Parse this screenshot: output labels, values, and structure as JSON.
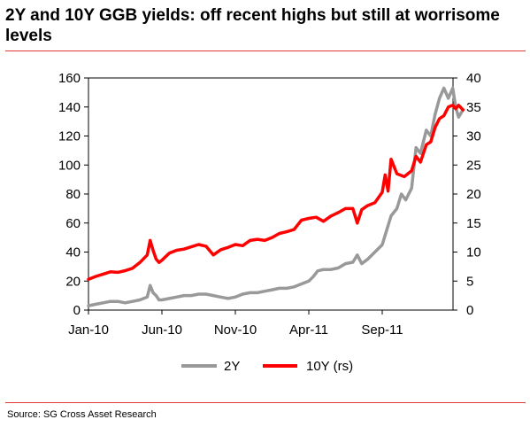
{
  "title": "2Y and 10Y GGB yields: off recent highs but still at worrisome levels",
  "source": "Source: SG Cross Asset Research",
  "chart_data": {
    "type": "line",
    "x_tick_labels": [
      "Jan-10",
      "Jun-10",
      "Nov-10",
      "Apr-11",
      "Sep-11"
    ],
    "y_left": {
      "ticks": [
        0,
        20,
        40,
        60,
        80,
        100,
        120,
        140,
        160
      ],
      "range": [
        0,
        160
      ]
    },
    "y_right": {
      "ticks": [
        0,
        5,
        10,
        15,
        20,
        25,
        30,
        35,
        40
      ],
      "range": [
        0,
        40
      ]
    },
    "x_range": [
      0,
      24
    ],
    "x_ticks": [
      0,
      5,
      10,
      15,
      20
    ],
    "grid": false,
    "legend_position": "bottom",
    "series": [
      {
        "name": "2Y",
        "axis": "left",
        "color": "#999999",
        "points": [
          [
            0,
            3
          ],
          [
            0.5,
            4
          ],
          [
            1,
            5
          ],
          [
            1.5,
            6
          ],
          [
            2,
            6
          ],
          [
            2.5,
            5
          ],
          [
            3,
            6
          ],
          [
            3.5,
            7
          ],
          [
            4,
            9
          ],
          [
            4.2,
            17
          ],
          [
            4.4,
            12
          ],
          [
            4.6,
            10
          ],
          [
            4.8,
            7
          ],
          [
            5,
            7
          ],
          [
            5.5,
            8
          ],
          [
            6,
            9
          ],
          [
            6.5,
            10
          ],
          [
            7,
            10
          ],
          [
            7.5,
            11
          ],
          [
            8,
            11
          ],
          [
            8.5,
            10
          ],
          [
            9,
            9
          ],
          [
            9.5,
            8
          ],
          [
            10,
            9
          ],
          [
            10.5,
            11
          ],
          [
            11,
            12
          ],
          [
            11.5,
            12
          ],
          [
            12,
            13
          ],
          [
            12.5,
            14
          ],
          [
            13,
            15
          ],
          [
            13.5,
            15
          ],
          [
            14,
            16
          ],
          [
            14.5,
            18
          ],
          [
            15,
            20
          ],
          [
            15.3,
            23
          ],
          [
            15.6,
            27
          ],
          [
            16,
            28
          ],
          [
            16.5,
            28
          ],
          [
            17,
            29
          ],
          [
            17.5,
            32
          ],
          [
            18,
            33
          ],
          [
            18.3,
            38
          ],
          [
            18.6,
            32
          ],
          [
            19,
            35
          ],
          [
            19.5,
            40
          ],
          [
            20,
            45
          ],
          [
            20.3,
            55
          ],
          [
            20.6,
            65
          ],
          [
            21,
            70
          ],
          [
            21.3,
            80
          ],
          [
            21.6,
            76
          ],
          [
            22,
            84
          ],
          [
            22.3,
            112
          ],
          [
            22.6,
            108
          ],
          [
            23,
            124
          ],
          [
            23.3,
            120
          ],
          [
            23.6,
            135
          ],
          [
            23.9,
            146
          ],
          [
            24.2,
            153
          ],
          [
            24.5,
            146
          ],
          [
            24.8,
            153
          ],
          [
            25,
            140
          ],
          [
            25.2,
            133
          ],
          [
            25.5,
            138
          ]
        ]
      },
      {
        "name": "10Y (rs)",
        "axis": "right",
        "color": "#ff0000",
        "points": [
          [
            0,
            5.3
          ],
          [
            0.5,
            5.8
          ],
          [
            1,
            6.2
          ],
          [
            1.5,
            6.6
          ],
          [
            2,
            6.5
          ],
          [
            2.5,
            6.8
          ],
          [
            3,
            7.2
          ],
          [
            3.5,
            8.2
          ],
          [
            4,
            9.5
          ],
          [
            4.2,
            12.0
          ],
          [
            4.4,
            10.3
          ],
          [
            4.6,
            8.8
          ],
          [
            4.8,
            8.2
          ],
          [
            5,
            8.6
          ],
          [
            5.5,
            9.8
          ],
          [
            6,
            10.3
          ],
          [
            6.5,
            10.5
          ],
          [
            7,
            10.9
          ],
          [
            7.5,
            11.3
          ],
          [
            8,
            11.0
          ],
          [
            8.5,
            9.5
          ],
          [
            9,
            10.4
          ],
          [
            9.5,
            10.8
          ],
          [
            10,
            11.3
          ],
          [
            10.5,
            11.1
          ],
          [
            11,
            12.0
          ],
          [
            11.5,
            12.2
          ],
          [
            12,
            12.0
          ],
          [
            12.5,
            12.5
          ],
          [
            13,
            13.2
          ],
          [
            13.5,
            13.5
          ],
          [
            14,
            13.9
          ],
          [
            14.5,
            15.5
          ],
          [
            15,
            15.8
          ],
          [
            15.5,
            16.0
          ],
          [
            16,
            15.3
          ],
          [
            16.5,
            16.2
          ],
          [
            17,
            16.8
          ],
          [
            17.5,
            17.5
          ],
          [
            18,
            17.5
          ],
          [
            18.3,
            15.0
          ],
          [
            18.6,
            17.3
          ],
          [
            19,
            18.0
          ],
          [
            19.5,
            18.5
          ],
          [
            20,
            20.3
          ],
          [
            20.2,
            23.3
          ],
          [
            20.4,
            20.5
          ],
          [
            20.6,
            26.0
          ],
          [
            21,
            23.5
          ],
          [
            21.5,
            23.0
          ],
          [
            22,
            24.0
          ],
          [
            22.3,
            26.5
          ],
          [
            22.6,
            25.5
          ],
          [
            23,
            28.5
          ],
          [
            23.3,
            29.0
          ],
          [
            23.6,
            31.5
          ],
          [
            23.9,
            33.0
          ],
          [
            24.2,
            33.5
          ],
          [
            24.5,
            35.0
          ],
          [
            24.8,
            35.3
          ],
          [
            25,
            34.7
          ],
          [
            25.2,
            35.3
          ],
          [
            25.5,
            34.5
          ]
        ]
      }
    ]
  }
}
